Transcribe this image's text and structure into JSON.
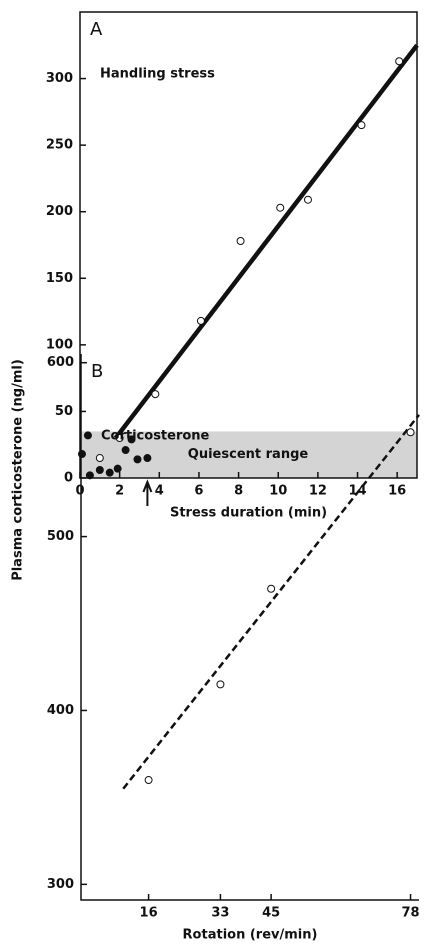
{
  "chart_data": [
    {
      "type": "scatter",
      "panel": "A",
      "annotation": "Handling stress",
      "band_label": "Quiescent range",
      "xlabel": "Stress duration (min)",
      "ylabel": "Plasma corticosterone (ng/ml)",
      "xlim": [
        0,
        17
      ],
      "ylim": [
        0,
        350
      ],
      "xticks": [
        0,
        2,
        4,
        6,
        8,
        10,
        12,
        14,
        16
      ],
      "yticks": [
        0,
        50,
        100,
        150,
        200,
        250,
        300
      ],
      "frame": true,
      "band": [
        0,
        35
      ],
      "band_color": "#d4d4d4",
      "arrow_x": 3.4,
      "series": [
        {
          "marker": "open",
          "color": "#111111",
          "x": [
            1,
            2,
            3.8,
            6.1,
            8.1,
            10.1,
            11.5,
            14.2,
            16.1
          ],
          "values": [
            15,
            30,
            63,
            118,
            178,
            203,
            209,
            265,
            313
          ]
        },
        {
          "marker": "filled",
          "color": "#111111",
          "x": [
            0.1,
            0.4,
            0.5,
            1,
            1.5,
            1.9,
            2.3,
            2.6,
            2.9,
            3.4
          ],
          "values": [
            18,
            32,
            2,
            6,
            4,
            7,
            21,
            29,
            14,
            15
          ]
        }
      ],
      "fit_line": {
        "style": "solid",
        "x": [
          1.8,
          17
        ],
        "values": [
          30,
          325
        ]
      }
    },
    {
      "type": "scatter",
      "panel": "B",
      "annotation": "Corticosterone",
      "xlabel": "Rotation (rev/min)",
      "xlim": [
        0,
        80
      ],
      "ylim": [
        291,
        605
      ],
      "xticks": [
        16,
        33,
        45,
        78
      ],
      "yticks": [
        300,
        400,
        500,
        600
      ],
      "frame": false,
      "series": [
        {
          "marker": "open",
          "color": "#111111",
          "x": [
            16,
            33,
            45,
            78
          ],
          "values": [
            360,
            415,
            470,
            560
          ]
        }
      ],
      "fit_line": {
        "style": "dashed",
        "x": [
          10,
          80
        ],
        "values": [
          355,
          570
        ]
      }
    }
  ]
}
